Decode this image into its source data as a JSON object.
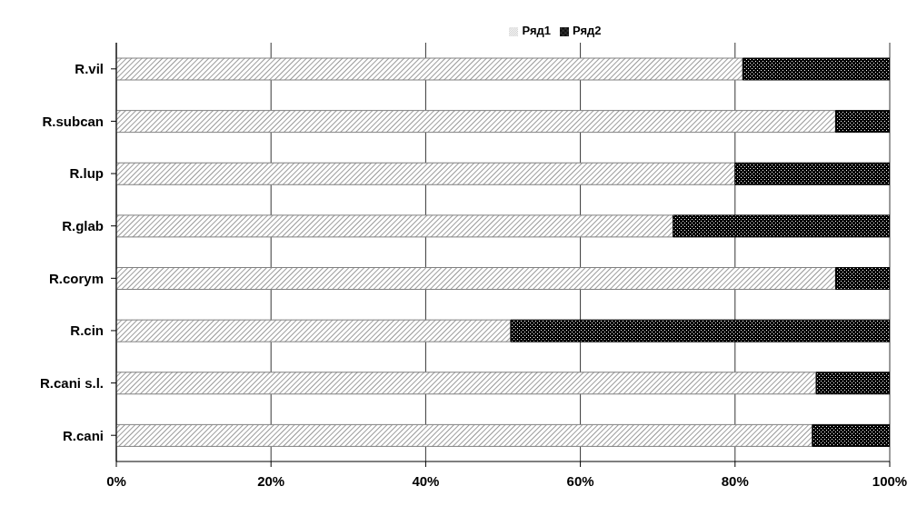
{
  "chart_data": {
    "type": "bar",
    "orientation": "horizontal",
    "stacked": true,
    "categories": [
      "R.vil",
      "R.subcan",
      "R.lup",
      "R.glab",
      "R.corym",
      "R.cin",
      "R.cani s.l.",
      "R.cani"
    ],
    "series": [
      {
        "name": "Ряд1",
        "color": "#808080",
        "values": [
          81,
          93,
          80,
          72,
          93,
          51,
          90.5,
          90
        ]
      },
      {
        "name": "Ряд2",
        "color": "#000000",
        "values": [
          19,
          7,
          20,
          28,
          7,
          49,
          9.5,
          10
        ]
      }
    ],
    "xlim": [
      0,
      100
    ],
    "xticks": [
      {
        "value": 0,
        "label": "0%"
      },
      {
        "value": 20,
        "label": "20%"
      },
      {
        "value": 40,
        "label": "40%"
      },
      {
        "value": 60,
        "label": "60%"
      },
      {
        "value": 80,
        "label": "80%"
      },
      {
        "value": 100,
        "label": "100%"
      }
    ],
    "grid": "x",
    "legend": "top"
  }
}
